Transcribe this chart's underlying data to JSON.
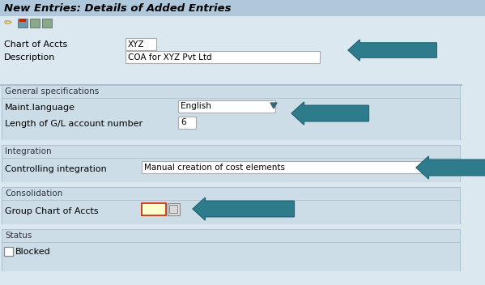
{
  "title": "New Entries: Details of Added Entries",
  "bg_color": "#dce8f0",
  "header_bg": "#b0c8dc",
  "section_bg": "#ccdde8",
  "field_bg": "#ffffff",
  "border_color": "#aabbcc",
  "arrow_color": "#2e7b8c",
  "text_color": "#000000",
  "dark_text": "#333344",
  "section1_title": "General specifications",
  "section2_title": "Integration",
  "section3_title": "Consolidation",
  "section4_title": "Status",
  "chart_of_accts_label": "Chart of Accts",
  "chart_of_accts_value": "XYZ",
  "description_label": "Description",
  "description_value": "COA for XYZ Pvt Ltd",
  "maint_lang_label": "Maint.language",
  "maint_lang_value": "English",
  "gl_length_label": "Length of G/L account number",
  "gl_length_value": "6",
  "ctrl_int_label": "Controlling integration",
  "ctrl_int_value": "Manual creation of cost elements",
  "group_chart_label": "Group Chart of Accts",
  "blocked_label": "Blocked"
}
